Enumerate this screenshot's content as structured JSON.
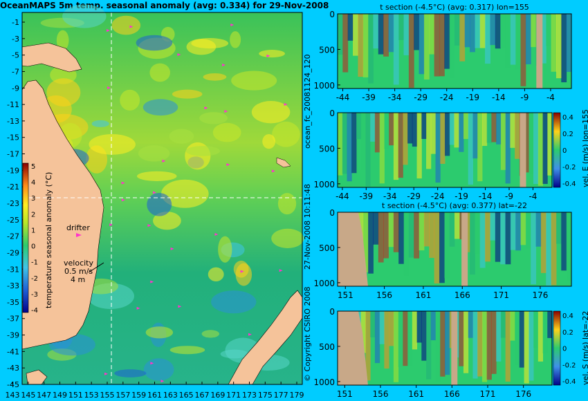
{
  "figure": {
    "title": "OceanMAPS 5m temp. seasonal anomaly (avg: 0.334) for 29-Nov-2008",
    "side_note_1": "ocean_fc_20081124_120",
    "side_note_2": "27-Nov-2008 10:11:48",
    "copyright": "© Copyright CSIRO 2008"
  },
  "map": {
    "lon_ticks": [
      "143",
      "145",
      "147",
      "149",
      "151",
      "153",
      "155",
      "157",
      "159",
      "161",
      "163",
      "165",
      "167",
      "169",
      "171",
      "173",
      "175",
      "177",
      "179"
    ],
    "lat_ticks": [
      "-1",
      "-3",
      "-5",
      "-7",
      "-9",
      "-11",
      "-13",
      "-15",
      "-17",
      "-19",
      "-21",
      "-23",
      "-25",
      "-27",
      "-29",
      "-31",
      "-33",
      "-35",
      "-37",
      "-39",
      "-41",
      "-43",
      "-45"
    ],
    "labels": {
      "drifter": "drifter",
      "velocity": "velocity",
      "velocity_value_1": "0.5 m/s",
      "velocity_value_2": "4 m"
    },
    "colorbar": {
      "label": "temperature seasonal anomaly (°C)",
      "ticks": [
        "5",
        "4",
        "3",
        "2",
        "1",
        "0",
        "-1",
        "-2",
        "-3",
        "-4"
      ],
      "range": [
        -4,
        5
      ]
    },
    "colors": {
      "land": "#f5c39a",
      "ocean_base": "#22bb66"
    }
  },
  "chart_data": [
    {
      "type": "heatmap",
      "title": "t section (-4.5°C) (avg: 0.317) lon=155",
      "x_ticks": [
        "-44",
        "-39",
        "-34",
        "-29",
        "-24",
        "-19",
        "-14",
        "-9",
        "-4"
      ],
      "y_ticks": [
        "0",
        "500",
        "1000"
      ],
      "xlim": [
        -45,
        0
      ],
      "ylim": [
        1050,
        0
      ]
    },
    {
      "type": "heatmap",
      "title": "",
      "x_ticks": [
        "-44",
        "-39",
        "-34",
        "-29",
        "-24",
        "-19",
        "-14",
        "-9",
        "-4"
      ],
      "y_ticks": [
        "0",
        "500",
        "1000"
      ],
      "xlim": [
        -45,
        0
      ],
      "ylim": [
        1050,
        0
      ],
      "colorbar_label": "vel. E (m/s) lon=155",
      "colorbar_ticks": [
        "0.4",
        "0.2",
        "0",
        "-0.2",
        "-0.4"
      ]
    },
    {
      "type": "heatmap",
      "title": "t section (-4.5°C) (avg: 0.377) lat=-22",
      "x_ticks": [
        "151",
        "156",
        "161",
        "166",
        "171",
        "176"
      ],
      "y_ticks": [
        "0",
        "500",
        "1000"
      ],
      "xlim": [
        150,
        180
      ],
      "ylim": [
        1050,
        0
      ]
    },
    {
      "type": "heatmap",
      "title": "",
      "x_ticks": [
        "151",
        "156",
        "161",
        "166",
        "171",
        "176"
      ],
      "y_ticks": [
        "0",
        "500",
        "1000"
      ],
      "xlim": [
        150,
        180
      ],
      "ylim": [
        1050,
        0
      ],
      "colorbar_label": "vel. S (m/s) lat=-22",
      "colorbar_ticks": [
        "0.4",
        "0.2",
        "0",
        "-0.2",
        "-0.4"
      ]
    }
  ]
}
